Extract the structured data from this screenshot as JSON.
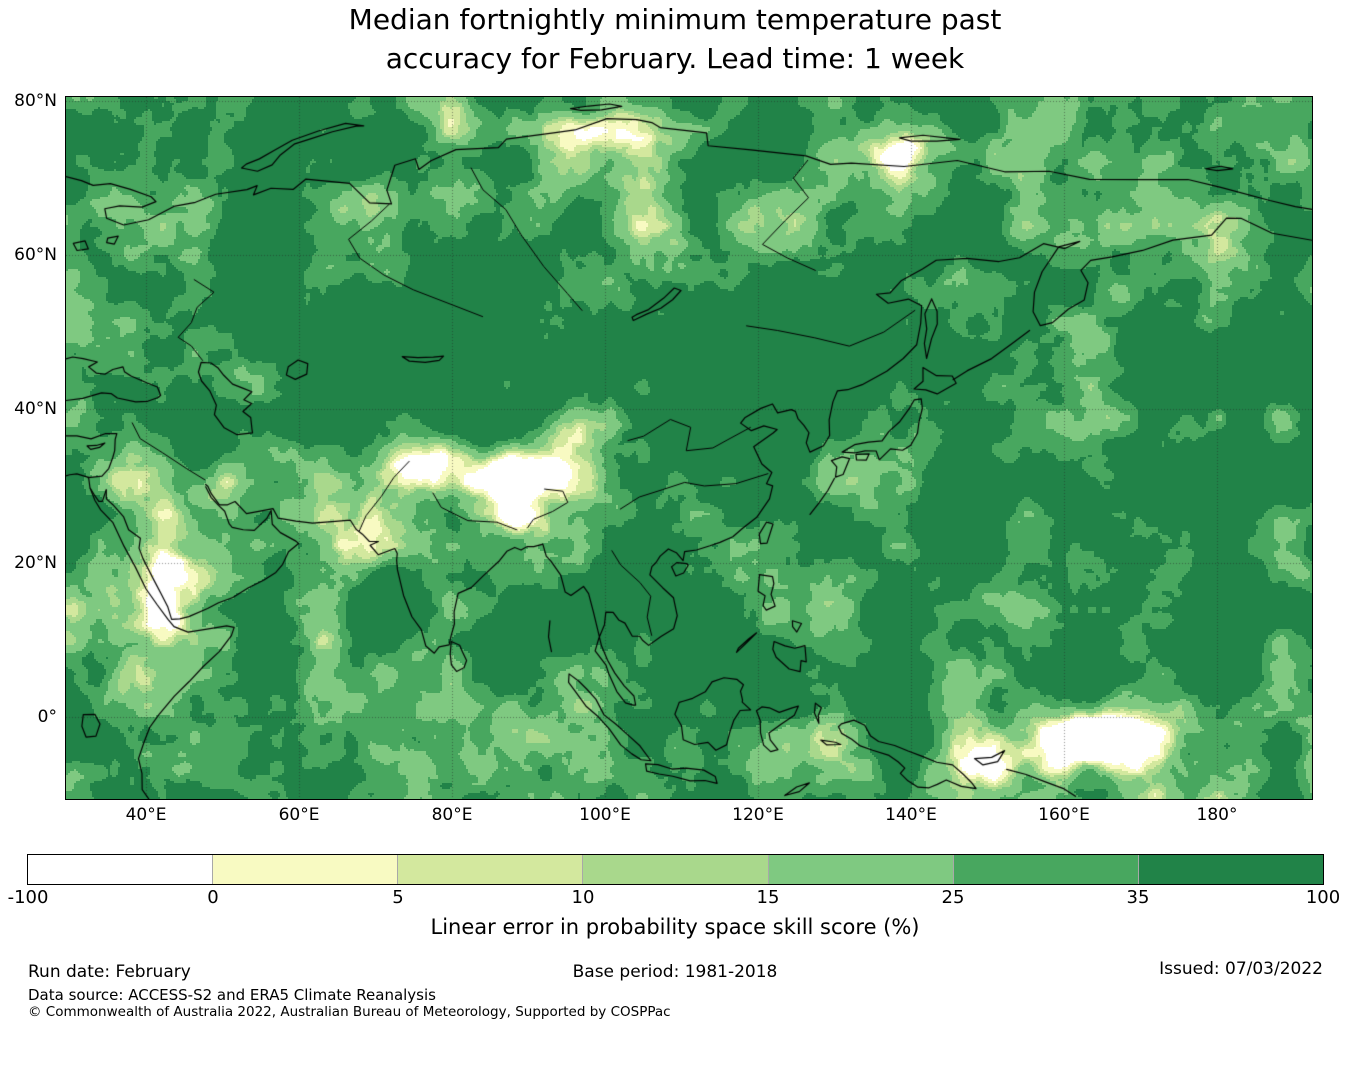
{
  "title": {
    "line1": "Median fortnightly minimum temperature past",
    "line2": "accuracy for February. Lead time: 1 week"
  },
  "map": {
    "x_tick_labels": [
      "40°E",
      "60°E",
      "80°E",
      "100°E",
      "120°E",
      "140°E",
      "160°E",
      "180°"
    ],
    "x_tick_values": [
      40,
      60,
      80,
      100,
      120,
      140,
      160,
      180
    ],
    "y_tick_labels": [
      "80°N",
      "60°N",
      "40°N",
      "20°N",
      "0°"
    ],
    "y_tick_values": [
      80,
      60,
      40,
      20,
      0
    ]
  },
  "colorbar": {
    "tick_labels": [
      "-100",
      "0",
      "5",
      "10",
      "15",
      "25",
      "35",
      "100"
    ],
    "levels": [
      -100,
      0,
      5,
      10,
      15,
      25,
      35,
      100
    ],
    "colors": [
      "#ffffff",
      "#f8fac2",
      "#d3e89e",
      "#a9d88c",
      "#7fc981",
      "#48a75f",
      "#218348"
    ],
    "caption": "Linear error in probability space skill score (%)"
  },
  "footer": {
    "run_date": "Run date: February",
    "base_period": "Base period: 1981-2018",
    "issued": "Issued: 07/03/2022",
    "data_source": "Data source: ACCESS-S2 and ERA5 Climate Reanalysis",
    "copyright": "© Commonwealth of Australia 2022, Australian Bureau of Meteorology, Supported by COSPPac"
  },
  "chart_data": {
    "type": "heatmap",
    "subtype": "filled-contour geographic skill map",
    "variable": "Linear error in probability space (LEPS) skill score of median fortnightly minimum temperature",
    "units": "%",
    "extent": {
      "lon_min": 29.5,
      "lon_max": 192.4,
      "lat_min": -10.7,
      "lat_max": 80.5
    },
    "levels": [
      -100,
      0,
      5,
      10,
      15,
      25,
      35,
      100
    ],
    "palette": [
      "#ffffff",
      "#f8fac2",
      "#d3e89e",
      "#a9d88c",
      "#7fc981",
      "#48a75f",
      "#218348"
    ],
    "grid_lons": [
      40,
      60,
      80,
      100,
      120,
      140,
      160,
      180
    ],
    "grid_lats": [
      0,
      20,
      40,
      60,
      80
    ],
    "gridlines": true,
    "legend_position": "bottom horizontal colorbar",
    "notable_low_skill_regions": [
      "Tibetan Plateau and Himalaya",
      "Karakoram / NW India",
      "Zagros / Iran",
      "Red Sea coast and Arabian Peninsula",
      "East Africa",
      "Bangladesh / NE India",
      "Maritime Continent",
      "Equatorial western Pacific white patch near 160-170E",
      "Taymyr and New Siberian Islands fringes"
    ],
    "notable_high_skill_regions": [
      "Central Asia and southern Siberia",
      "Eastern China",
      "Bay of Bengal and tropical Indian Ocean",
      "Western North Pacific north of the equator"
    ]
  }
}
